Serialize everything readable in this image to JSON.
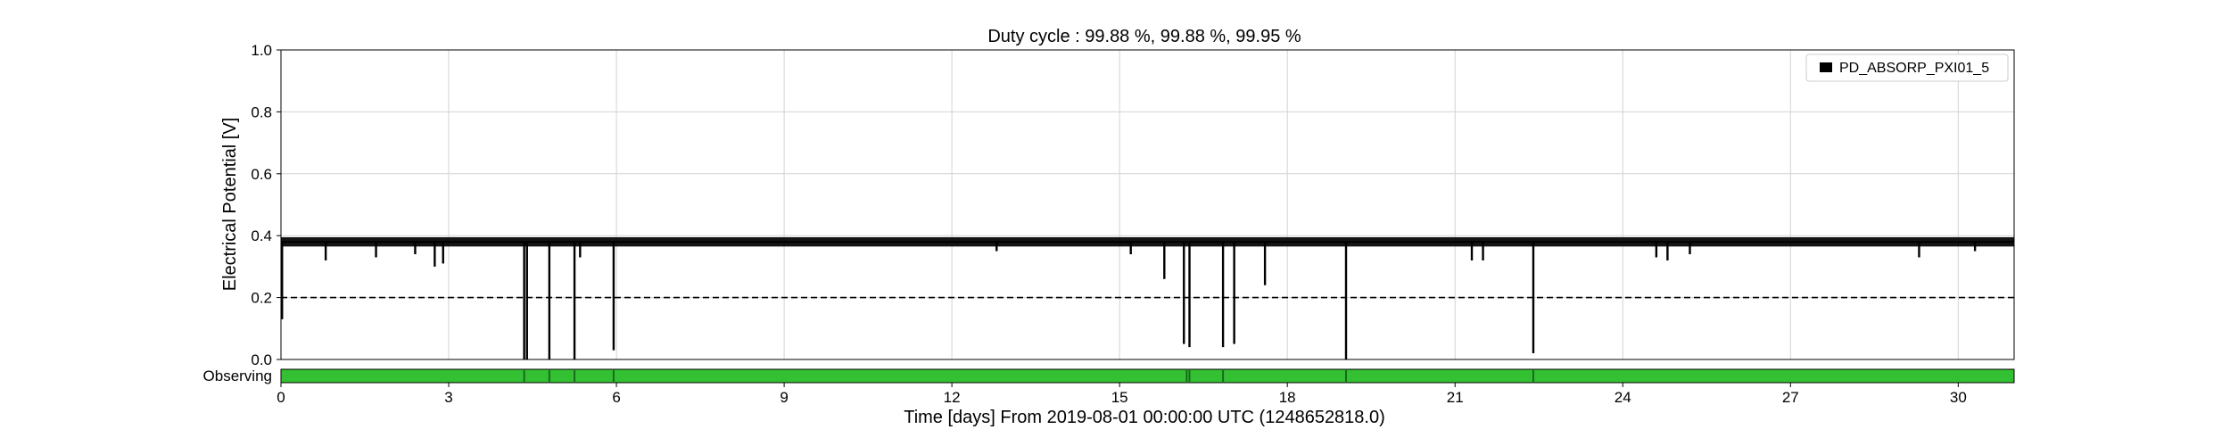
{
  "chart_data": {
    "type": "line",
    "title": "Duty cycle : 99.88 %, 99.88 %, 99.95 %",
    "xlabel": "Time [days] From 2019-08-01 00:00:00 UTC (1248652818.0)",
    "ylabel": "Electrical Potential [V]",
    "xlim": [
      0,
      31
    ],
    "ylim": [
      0,
      1.0
    ],
    "xticks": [
      0,
      3,
      6,
      9,
      12,
      15,
      18,
      21,
      24,
      27,
      30
    ],
    "xtick_labels": [
      "0",
      "3",
      "6",
      "9",
      "12",
      "15",
      "18",
      "21",
      "24",
      "27",
      "30"
    ],
    "yticks": [
      0.0,
      0.2,
      0.4,
      0.6,
      0.8,
      1.0
    ],
    "ytick_labels": [
      "0.0",
      "0.2",
      "0.4",
      "0.6",
      "0.8",
      "1.0"
    ],
    "grid": true,
    "legend_position": "top-right",
    "series": [
      {
        "name": "PD_ABSORP_PXI01_5",
        "color": "#000000",
        "baseline_value": 0.38,
        "baseline_noise_range": [
          0.365,
          0.395
        ],
        "dips": [
          {
            "x": 0.02,
            "y": 0.13
          },
          {
            "x": 0.8,
            "y": 0.32
          },
          {
            "x": 1.7,
            "y": 0.33
          },
          {
            "x": 2.4,
            "y": 0.34
          },
          {
            "x": 2.75,
            "y": 0.3
          },
          {
            "x": 2.9,
            "y": 0.31
          },
          {
            "x": 4.35,
            "y": 0.0
          },
          {
            "x": 4.4,
            "y": 0.0
          },
          {
            "x": 4.8,
            "y": 0.0
          },
          {
            "x": 5.25,
            "y": 0.0
          },
          {
            "x": 5.35,
            "y": 0.33
          },
          {
            "x": 5.95,
            "y": 0.03
          },
          {
            "x": 12.8,
            "y": 0.35
          },
          {
            "x": 15.2,
            "y": 0.34
          },
          {
            "x": 15.8,
            "y": 0.26
          },
          {
            "x": 16.15,
            "y": 0.05
          },
          {
            "x": 16.25,
            "y": 0.04
          },
          {
            "x": 16.85,
            "y": 0.04
          },
          {
            "x": 17.05,
            "y": 0.05
          },
          {
            "x": 17.6,
            "y": 0.24
          },
          {
            "x": 19.05,
            "y": 0.0
          },
          {
            "x": 21.3,
            "y": 0.32
          },
          {
            "x": 21.5,
            "y": 0.32
          },
          {
            "x": 22.4,
            "y": 0.02
          },
          {
            "x": 24.6,
            "y": 0.33
          },
          {
            "x": 24.8,
            "y": 0.32
          },
          {
            "x": 25.2,
            "y": 0.34
          },
          {
            "x": 29.3,
            "y": 0.33
          },
          {
            "x": 30.3,
            "y": 0.35
          }
        ]
      }
    ],
    "threshold": {
      "value": 0.2,
      "style": "dashed",
      "color": "#000000"
    },
    "state_segment": {
      "label": "Observing",
      "color": "#33c133",
      "gaps": [
        4.35,
        4.8,
        5.25,
        5.95,
        16.2,
        16.25,
        16.85,
        19.05,
        22.4
      ]
    }
  }
}
